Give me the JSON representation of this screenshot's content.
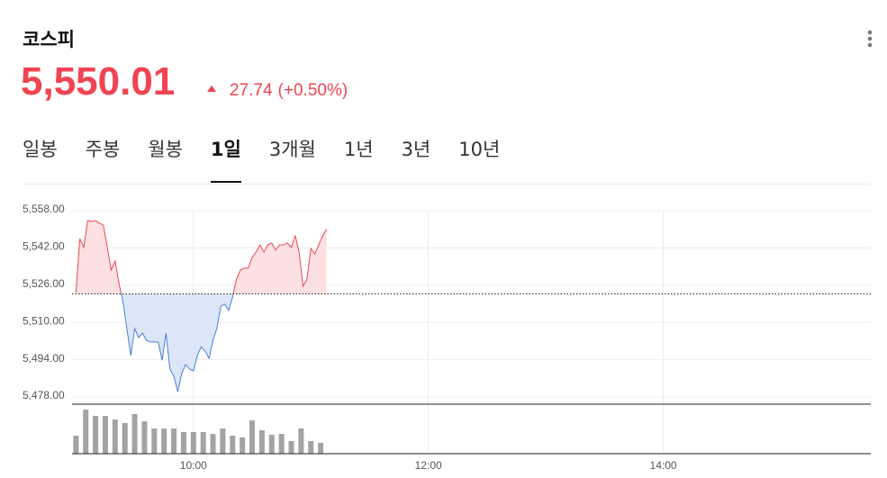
{
  "header": {
    "title": "코스피",
    "price": "5,550.01",
    "change": "27.74",
    "change_percent": "(+0.50%)"
  },
  "tabs": [
    "일봉",
    "주봉",
    "월봉",
    "1일",
    "3개월",
    "1년",
    "3년",
    "10년"
  ],
  "active_tab": 3,
  "chart_data": [
    {
      "type": "area",
      "x": [
        540,
        542,
        544,
        546,
        548,
        550,
        552,
        554,
        556,
        558,
        560,
        562,
        564,
        566,
        568,
        570,
        572,
        574,
        576,
        578,
        580,
        582,
        584,
        586,
        588,
        590,
        592,
        594,
        596,
        598,
        600,
        602,
        604,
        606,
        608,
        610,
        612,
        614,
        616,
        618,
        620,
        622,
        624,
        626,
        628,
        630,
        632,
        634,
        636,
        638,
        640,
        642,
        644,
        646,
        648,
        650,
        652,
        654,
        656,
        658,
        660,
        662,
        664,
        666,
        668
      ],
      "values": [
        5522.8,
        5546.0,
        5542.2,
        5553.7,
        5553.4,
        5553.7,
        5552.6,
        5551.8,
        5542.2,
        5532.5,
        5536.4,
        5526.7,
        5519.0,
        5507.4,
        5495.8,
        5507.4,
        5503.5,
        5505.4,
        5502.3,
        5501.6,
        5501.6,
        5501.6,
        5493.8,
        5505.4,
        5490.0,
        5486.9,
        5480.3,
        5488.0,
        5491.9,
        5490.0,
        5489.2,
        5495.8,
        5499.6,
        5497.7,
        5494.6,
        5502.3,
        5507.4,
        5517.0,
        5517.8,
        5515.1,
        5520.9,
        5528.6,
        5532.5,
        5533.3,
        5533.3,
        5537.9,
        5540.2,
        5543.3,
        5540.2,
        5543.3,
        5544.1,
        5541.0,
        5543.3,
        5543.3,
        5544.1,
        5542.2,
        5547.2,
        5540.2,
        5525.5,
        5528.6,
        5541.8,
        5539.4,
        5543.3,
        5547.2,
        5550.0
      ],
      "reference_value": 5522.27,
      "up_color": "#f04452",
      "down_color": "#4a7fd4",
      "up_fill": "#fde1e2",
      "down_fill": "#dce6f8",
      "xlim": [
        538,
        946
      ],
      "xticks": [
        {
          "value": 600,
          "label": "10:00"
        },
        {
          "value": 720,
          "label": "12:00"
        },
        {
          "value": 840,
          "label": "14:00"
        }
      ],
      "ylim": [
        5478,
        5558
      ],
      "yticks": [
        {
          "value": 5558,
          "label": "5,558.00"
        },
        {
          "value": 5542,
          "label": "5,542.00"
        },
        {
          "value": 5526,
          "label": "5,526.00"
        },
        {
          "value": 5510,
          "label": "5,510.00"
        },
        {
          "value": 5494,
          "label": "5,494.00"
        },
        {
          "value": 5478,
          "label": "5,478.00"
        }
      ],
      "grid": true
    },
    {
      "type": "bar",
      "x": [
        540,
        545,
        550,
        555,
        560,
        565,
        570,
        575,
        580,
        585,
        590,
        595,
        600,
        605,
        610,
        615,
        620,
        625,
        630,
        635,
        640,
        645,
        650,
        655,
        660,
        665
      ],
      "values": [
        20,
        49,
        42,
        42,
        38,
        34,
        44,
        36,
        28,
        28,
        28,
        24,
        24,
        24,
        22,
        28,
        20,
        18,
        37,
        26,
        21,
        22,
        14,
        28,
        14,
        12
      ],
      "color": "#a3a3a3",
      "ylim": [
        0,
        54
      ]
    }
  ]
}
